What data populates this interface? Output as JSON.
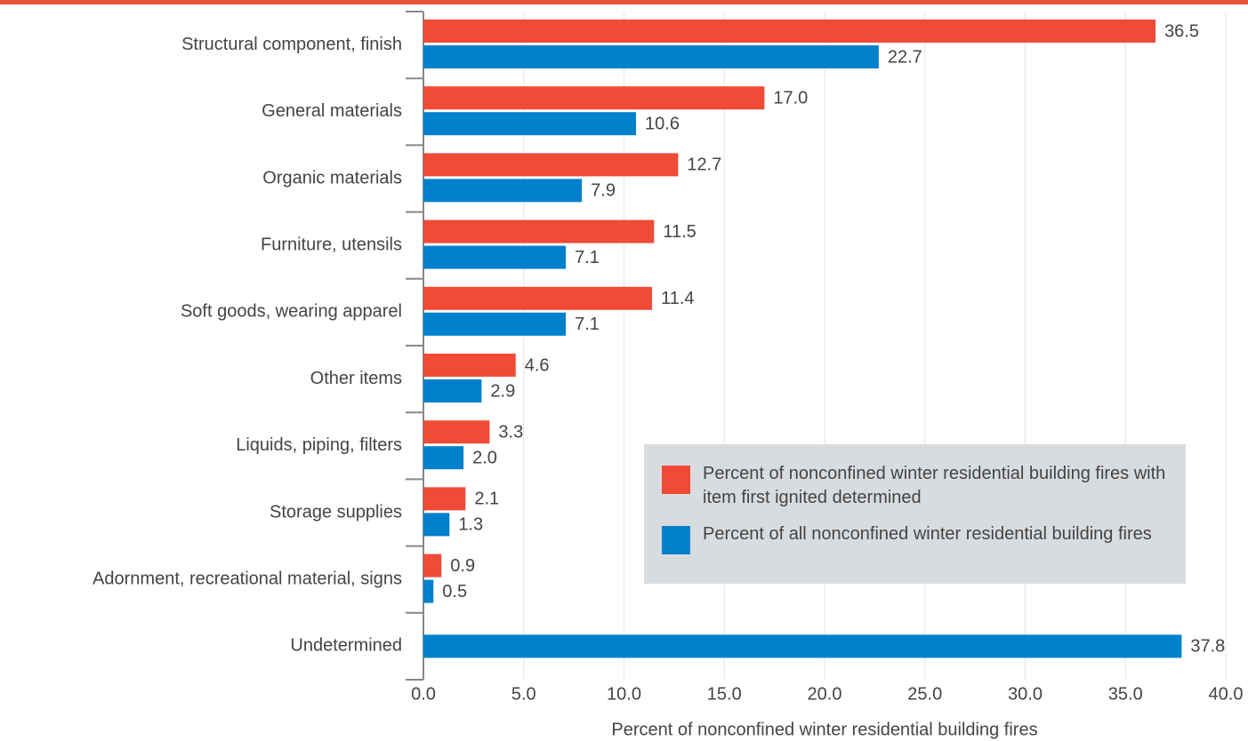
{
  "chart_data": {
    "type": "hbar",
    "xlabel": "Percent of nonconfined winter residential building fires",
    "categories": [
      "Structural component, finish",
      "General materials",
      "Organic materials",
      "Furniture, utensils",
      "Soft goods, wearing apparel",
      "Other items",
      "Liquids, piping, filters",
      "Storage supplies",
      "Adornment, recreational material, signs",
      "Undetermined"
    ],
    "series": [
      {
        "name": "Percent of nonconfined winter residential building fires with item first ignited determined",
        "color": "#ef4b37",
        "values": [
          36.5,
          17.0,
          12.7,
          11.5,
          11.4,
          4.6,
          3.3,
          2.1,
          0.9,
          null
        ],
        "value_labels": [
          "36.5",
          "17.0",
          "12.7",
          "11.5",
          "11.4",
          "4.6",
          "3.3",
          "2.1",
          "0.9",
          null
        ]
      },
      {
        "name": "Percent of all nonconfined winter residential building fires",
        "color": "#0180cc",
        "values": [
          22.7,
          10.6,
          7.9,
          7.1,
          7.1,
          2.9,
          2.0,
          1.3,
          0.5,
          37.8
        ],
        "value_labels": [
          "22.7",
          "10.6",
          "7.9",
          "7.1",
          "7.1",
          "2.9",
          "2.0",
          "1.3",
          "0.5",
          "37.8"
        ]
      }
    ],
    "xlim": [
      0,
      40
    ],
    "xticks": [
      {
        "value": 0,
        "label": "0.0"
      },
      {
        "value": 5,
        "label": "5.0"
      },
      {
        "value": 10,
        "label": "10.0"
      },
      {
        "value": 15,
        "label": "15.0"
      },
      {
        "value": 20,
        "label": "20.0"
      },
      {
        "value": 25,
        "label": "25.0"
      },
      {
        "value": 30,
        "label": "30.0"
      },
      {
        "value": 35,
        "label": "35.0"
      },
      {
        "value": 40,
        "label": "40.0"
      }
    ],
    "grid": true,
    "legend": "lower right"
  }
}
